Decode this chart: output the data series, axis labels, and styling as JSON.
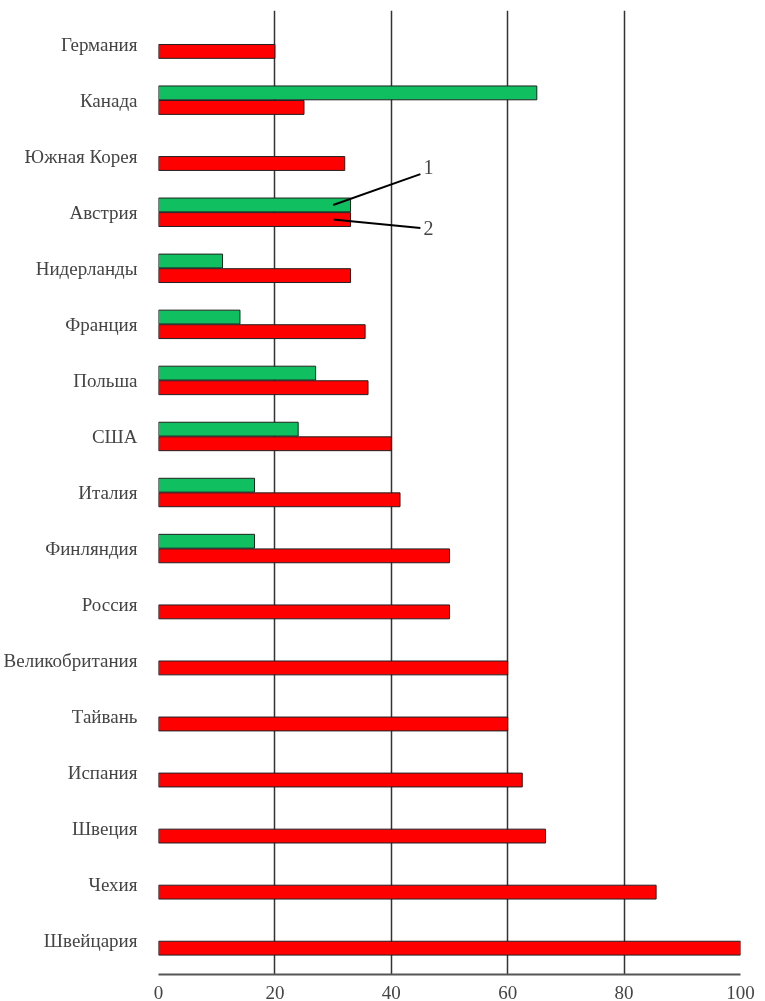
{
  "chart_data": {
    "type": "bar",
    "orientation": "horizontal",
    "categories": [
      "Германия",
      "Канада",
      "Южная Корея",
      "Австрия",
      "Нидерланды",
      "Франция",
      "Польша",
      "США",
      "Италия",
      "Финляндия",
      "Россия",
      "Великобритания",
      "Тайвань",
      "Испания",
      "Швеция",
      "Чехия",
      "Швейцария"
    ],
    "series": [
      {
        "color": "#10c060",
        "values": [
          null,
          65,
          null,
          33,
          11,
          14,
          27,
          24,
          16.5,
          16.5,
          null,
          null,
          null,
          null,
          null,
          null,
          null
        ]
      },
      {
        "color": "#ff0000",
        "values": [
          20,
          25,
          32,
          33,
          33,
          35.5,
          36,
          40,
          41.5,
          50,
          50,
          60,
          60,
          62.5,
          66.5,
          85.5,
          100
        ]
      }
    ],
    "xlim": [
      0,
      100
    ],
    "xticks": [
      0,
      20,
      40,
      60,
      80,
      100
    ],
    "grid": "x",
    "annotations": [
      "1",
      "2"
    ]
  }
}
